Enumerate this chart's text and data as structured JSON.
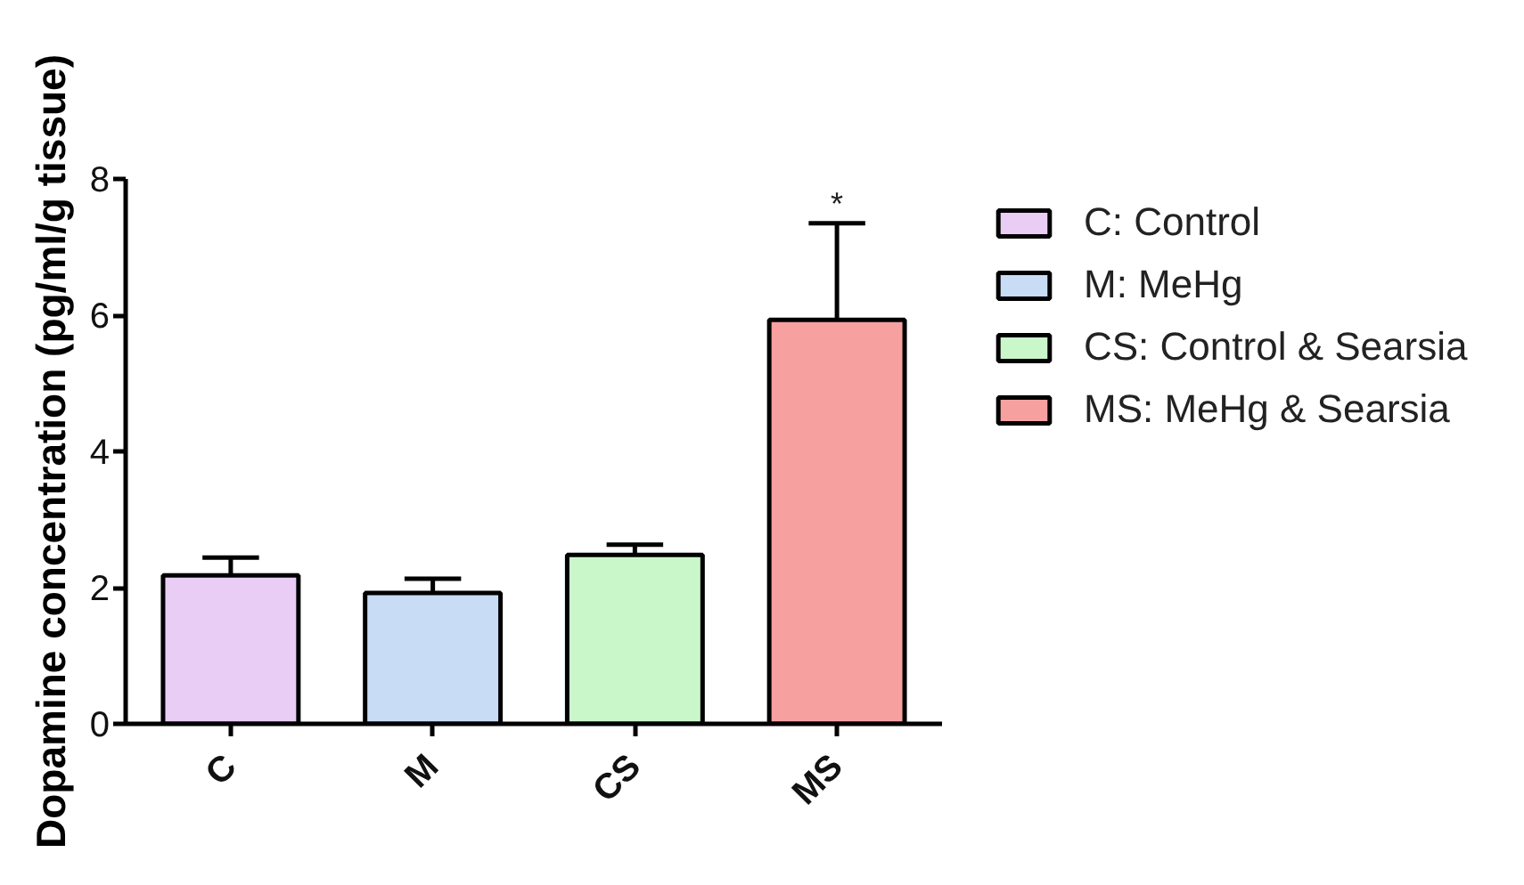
{
  "chart_data": {
    "type": "bar",
    "ylabel": "Dopamine concentration (pg/ml/g tissue)",
    "categories": [
      "C",
      "M",
      "CS",
      "MS"
    ],
    "series": [
      {
        "name": "C: Control",
        "color": "#e9cdf5",
        "values": [
          2.18,
          null,
          null,
          null
        ],
        "errors": [
          [
            2.18,
            2.44
          ],
          null,
          null,
          null
        ]
      },
      {
        "name": "M: MeHg",
        "color": "#c9dcf5",
        "values": [
          null,
          1.92,
          null,
          null
        ],
        "errors": [
          null,
          [
            1.92,
            2.13
          ],
          null,
          null
        ]
      },
      {
        "name": "CS: Control & Searsia",
        "color": "#c9f7c9",
        "values": [
          null,
          null,
          2.48,
          null
        ],
        "errors": [
          null,
          null,
          [
            2.48,
            2.63
          ],
          null
        ]
      },
      {
        "name": "MS: MeHg & Searsia",
        "color": "#f7a0a0",
        "values": [
          null,
          null,
          null,
          5.93
        ],
        "errors": [
          null,
          null,
          null,
          [
            5.93,
            7.35
          ]
        ]
      }
    ],
    "ylim": [
      0,
      8
    ],
    "yticks": [
      0,
      2,
      4,
      6,
      8
    ],
    "legend": "right",
    "annotations": [
      {
        "text": "*",
        "x": "MS",
        "y": 7.35
      }
    ]
  }
}
